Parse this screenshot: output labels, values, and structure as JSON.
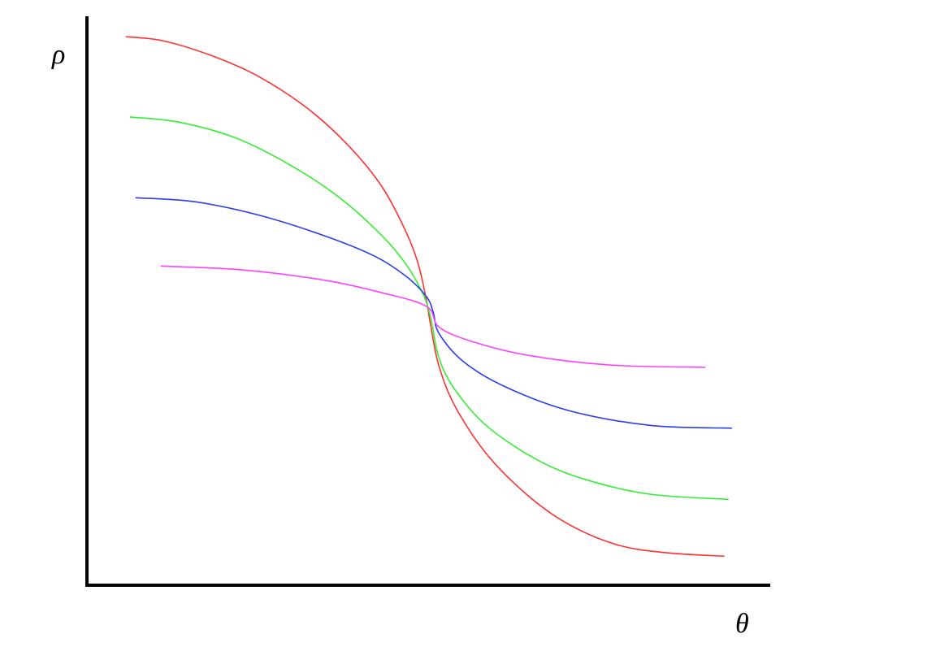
{
  "chart_data": {
    "type": "line",
    "x_label": "θ",
    "y_label": "ρ",
    "xlim": [
      0,
      100
    ],
    "ylim": [
      0,
      100
    ],
    "grid": false,
    "series": [
      {
        "color": "#ff3030",
        "x": [
          5.7,
          11.1,
          18.2,
          25.3,
          32.5,
          38.4,
          43.2,
          46.7,
          48.5,
          49.7,
          50.3,
          51.5,
          53.9,
          58.6,
          64.6,
          70.5,
          77.6,
          84.8,
          93.3
        ],
        "values": [
          96.4,
          95.7,
          93.1,
          89.3,
          83.6,
          77.1,
          70.0,
          62.1,
          56.4,
          50.0,
          45.7,
          38.6,
          31.4,
          22.9,
          15.7,
          10.7,
          7.1,
          5.7,
          5.1
        ]
      },
      {
        "color": "#33ee33",
        "x": [
          6.3,
          13.4,
          21.8,
          30.1,
          37.2,
          43.2,
          46.7,
          49.1,
          50.3,
          51.5,
          53.9,
          58.6,
          65.8,
          72.9,
          82.4,
          93.9
        ],
        "values": [
          82.3,
          81.4,
          78.6,
          73.6,
          67.9,
          61.4,
          56.4,
          51.4,
          47.1,
          40.0,
          34.3,
          27.9,
          22.1,
          18.6,
          16.0,
          15.1
        ]
      },
      {
        "color": "#2a3cf0",
        "x": [
          7.1,
          15.8,
          25.3,
          34.8,
          42.0,
          46.7,
          49.7,
          50.7,
          51.5,
          55.1,
          61.0,
          70.5,
          82.4,
          94.4
        ],
        "values": [
          68.1,
          67.4,
          65.0,
          61.4,
          57.9,
          54.3,
          50.7,
          47.9,
          44.3,
          39.3,
          35.0,
          30.7,
          28.1,
          27.6
        ]
      },
      {
        "color": "#ff40ff",
        "x": [
          10.8,
          22.9,
          34.8,
          43.2,
          49.7,
          51.5,
          56.2,
          64.6,
          76.5,
          90.5
        ],
        "values": [
          56.1,
          55.4,
          53.6,
          51.4,
          49.0,
          45.4,
          42.9,
          40.4,
          38.7,
          38.3
        ]
      }
    ]
  }
}
